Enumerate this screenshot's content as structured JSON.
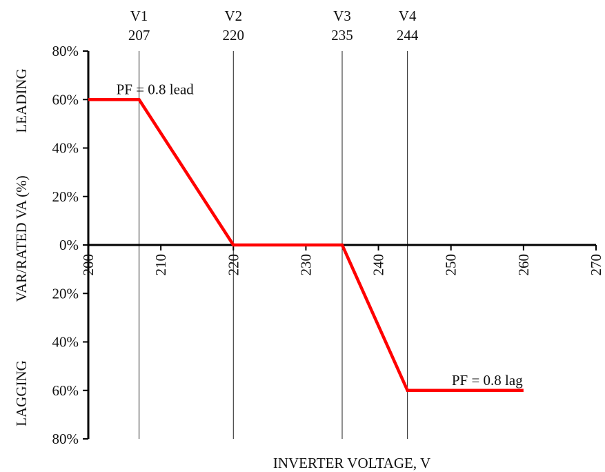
{
  "chart_data": {
    "type": "line",
    "title": "",
    "xlabel": "INVERTER VOLTAGE, V",
    "ylabel": "VAR/RATED VA (%)",
    "xlim": [
      200,
      270
    ],
    "ylim": [
      -80,
      80
    ],
    "x_ticks": [
      200,
      210,
      220,
      230,
      240,
      250,
      260,
      270
    ],
    "x_tick_labels": [
      "200",
      "210",
      "220",
      "230",
      "240",
      "250",
      "260",
      "270"
    ],
    "y_ticks": [
      80,
      60,
      40,
      20,
      0,
      -20,
      -40,
      -60,
      -80
    ],
    "y_tick_labels": [
      "80%",
      "60%",
      "40%",
      "20%",
      "0%",
      "20%",
      "40%",
      "60%",
      "80%"
    ],
    "grid": false,
    "series": [
      {
        "color": "#ff0000",
        "x": [
          200,
          207,
          220,
          235,
          244,
          260
        ],
        "y": [
          60,
          60,
          0,
          0,
          -60,
          -60
        ]
      }
    ],
    "vertical_markers": [
      {
        "name": "V1",
        "value": 207,
        "label": "207"
      },
      {
        "name": "V2",
        "value": 220,
        "label": "220"
      },
      {
        "name": "V3",
        "value": 235,
        "label": "235"
      },
      {
        "name": "V4",
        "value": 244,
        "label": "244"
      }
    ],
    "annotations": [
      {
        "text": "PF = 0.8 lead",
        "x": 207,
        "y": 60,
        "anchor": "above-right"
      },
      {
        "text": "PF = 0.8 lag",
        "x": 255,
        "y": -60,
        "anchor": "above-center"
      }
    ],
    "region_labels": {
      "upper": "LEADING",
      "lower": "LAGGING"
    }
  }
}
